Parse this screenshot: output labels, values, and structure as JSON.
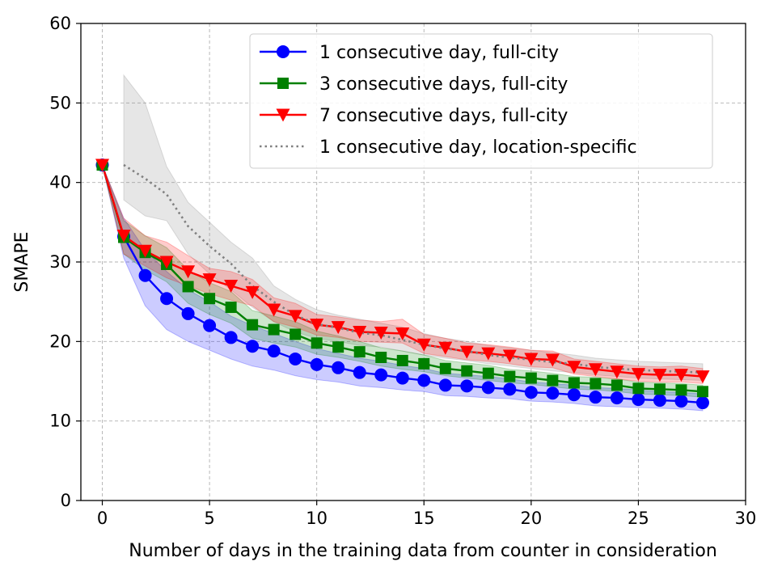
{
  "chart_data": {
    "type": "line",
    "title": "",
    "xlabel": "Number of days in the training data from counter in consideration",
    "ylabel": "SMAPE",
    "xlim": [
      -1,
      30
    ],
    "ylim": [
      0,
      60
    ],
    "xticks": [
      0,
      5,
      10,
      15,
      20,
      25,
      30
    ],
    "yticks": [
      0,
      10,
      20,
      30,
      40,
      50,
      60
    ],
    "grid": true,
    "legend_position": "top-right",
    "series": [
      {
        "name": "1 consecutive day, full-city",
        "color": "#0000ff",
        "marker": "circle",
        "line_style": "solid",
        "x": [
          0,
          1,
          2,
          3,
          4,
          5,
          6,
          7,
          8,
          9,
          10,
          11,
          12,
          13,
          14,
          15,
          16,
          17,
          18,
          19,
          20,
          21,
          22,
          23,
          24,
          25,
          26,
          27,
          28
        ],
        "values": [
          42.2,
          33.2,
          28.3,
          25.4,
          23.5,
          22.0,
          20.5,
          19.4,
          18.8,
          17.8,
          17.1,
          16.7,
          16.1,
          15.8,
          15.4,
          15.1,
          14.5,
          14.4,
          14.2,
          14.0,
          13.6,
          13.5,
          13.3,
          13.0,
          12.9,
          12.7,
          12.6,
          12.5,
          12.3
        ],
        "band_lower": [
          42.2,
          30.5,
          24.5,
          21.5,
          20.0,
          18.9,
          17.8,
          16.9,
          16.4,
          15.7,
          15.2,
          14.9,
          14.4,
          14.2,
          13.9,
          13.7,
          13.2,
          13.1,
          12.9,
          12.8,
          12.5,
          12.4,
          12.2,
          11.9,
          11.8,
          11.7,
          11.6,
          11.5,
          11.3
        ],
        "band_upper": [
          42.2,
          35.5,
          31.5,
          28.8,
          26.5,
          25.0,
          23.2,
          22.0,
          21.0,
          20.0,
          19.1,
          18.5,
          17.9,
          17.5,
          17.0,
          16.6,
          16.0,
          15.8,
          15.6,
          15.3,
          14.9,
          14.7,
          14.5,
          14.2,
          14.1,
          13.9,
          13.7,
          13.6,
          13.4
        ]
      },
      {
        "name": "3 consecutive days, full-city",
        "color": "#008000",
        "marker": "square",
        "line_style": "solid",
        "x": [
          0,
          1,
          2,
          3,
          4,
          5,
          6,
          7,
          8,
          9,
          10,
          11,
          12,
          13,
          14,
          15,
          16,
          17,
          18,
          19,
          20,
          21,
          22,
          23,
          24,
          25,
          26,
          27,
          28
        ],
        "values": [
          42.2,
          33.1,
          31.2,
          29.7,
          26.9,
          25.4,
          24.3,
          22.1,
          21.5,
          20.9,
          19.8,
          19.3,
          18.7,
          18.0,
          17.6,
          17.2,
          16.6,
          16.3,
          16.0,
          15.6,
          15.4,
          15.1,
          14.8,
          14.7,
          14.5,
          14.1,
          14.0,
          13.9,
          13.7
        ],
        "band_lower": [
          42.2,
          31.0,
          29.0,
          27.5,
          24.8,
          23.4,
          22.3,
          20.4,
          19.8,
          19.3,
          18.4,
          18.0,
          17.5,
          16.9,
          16.5,
          16.2,
          15.7,
          15.4,
          15.1,
          14.8,
          14.6,
          14.3,
          14.0,
          13.9,
          13.7,
          13.4,
          13.3,
          13.2,
          13.0
        ],
        "band_upper": [
          42.2,
          35.2,
          33.3,
          31.8,
          29.0,
          27.4,
          26.3,
          23.9,
          23.2,
          22.5,
          21.3,
          20.7,
          20.0,
          19.2,
          18.8,
          18.3,
          17.6,
          17.3,
          17.0,
          16.5,
          16.3,
          16.0,
          15.6,
          15.5,
          15.3,
          14.9,
          14.8,
          14.7,
          14.5
        ]
      },
      {
        "name": "7 consecutive days, full-city",
        "color": "#ff0000",
        "marker": "triangle-down",
        "line_style": "solid",
        "x": [
          0,
          1,
          2,
          3,
          4,
          5,
          6,
          7,
          8,
          9,
          10,
          11,
          12,
          13,
          14,
          15,
          16,
          17,
          18,
          19,
          20,
          21,
          22,
          23,
          24,
          25,
          26,
          27,
          28
        ],
        "values": [
          42.2,
          33.3,
          31.4,
          30.0,
          28.8,
          27.8,
          27.0,
          26.2,
          24.0,
          23.2,
          22.1,
          21.8,
          21.2,
          21.1,
          21.0,
          19.6,
          19.2,
          18.7,
          18.5,
          18.2,
          17.8,
          17.7,
          16.8,
          16.5,
          16.2,
          15.9,
          15.8,
          15.8,
          15.6
        ],
        "band_lower": [
          42.2,
          31.0,
          29.5,
          28.0,
          27.0,
          26.0,
          25.2,
          24.5,
          22.5,
          21.8,
          20.8,
          20.5,
          20.0,
          19.9,
          19.8,
          18.5,
          18.1,
          17.7,
          17.5,
          17.2,
          16.8,
          16.7,
          15.9,
          15.6,
          15.3,
          15.0,
          14.9,
          14.9,
          14.7
        ],
        "band_upper": [
          42.2,
          35.5,
          33.3,
          32.5,
          30.8,
          29.2,
          28.8,
          27.8,
          25.5,
          24.8,
          23.4,
          23.1,
          22.7,
          22.5,
          22.8,
          20.9,
          20.4,
          19.8,
          19.6,
          19.3,
          18.9,
          18.8,
          17.8,
          17.5,
          17.2,
          16.9,
          16.8,
          16.9,
          16.6
        ]
      },
      {
        "name": "1 consecutive day, location-specific",
        "color": "#808080",
        "marker": "none",
        "line_style": "dotted",
        "x": [
          1,
          2,
          3,
          4,
          5,
          6,
          7,
          8,
          9,
          10,
          11,
          12,
          13,
          14,
          15,
          16,
          17,
          18,
          19,
          20,
          21,
          22,
          23,
          24,
          25,
          26,
          27,
          28
        ],
        "values": [
          42.2,
          40.5,
          38.5,
          34.5,
          32.0,
          29.8,
          27.0,
          25.0,
          23.3,
          22.2,
          21.7,
          21.1,
          20.8,
          20.2,
          19.6,
          19.1,
          18.8,
          18.3,
          18.0,
          17.7,
          17.4,
          17.2,
          16.8,
          16.6,
          16.4,
          16.3,
          16.2,
          16.1
        ],
        "band_lower": [
          37.8,
          35.8,
          35.2,
          31.0,
          28.5,
          26.5,
          24.3,
          22.5,
          21.2,
          20.4,
          20.0,
          19.5,
          19.3,
          18.8,
          18.3,
          17.9,
          17.6,
          17.2,
          16.9,
          16.6,
          16.3,
          16.1,
          15.8,
          15.6,
          15.4,
          15.3,
          15.2,
          15.1
        ],
        "band_upper": [
          53.5,
          50.0,
          42.0,
          37.5,
          35.0,
          32.5,
          30.5,
          27.0,
          25.3,
          24.0,
          23.3,
          22.8,
          22.3,
          21.8,
          21.0,
          20.4,
          20.0,
          19.5,
          19.2,
          18.9,
          18.6,
          18.3,
          17.9,
          17.7,
          17.5,
          17.4,
          17.3,
          17.2
        ]
      }
    ]
  }
}
